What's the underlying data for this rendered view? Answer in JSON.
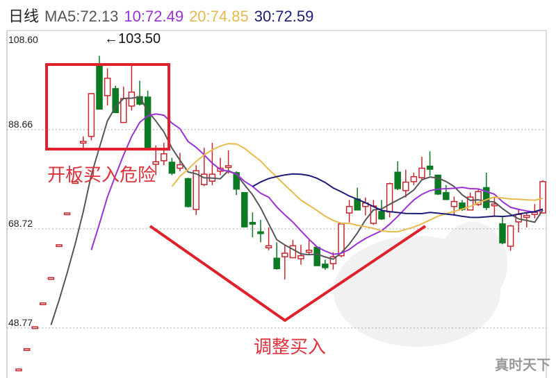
{
  "header": {
    "period": "日线",
    "ma5": "MA5:72.13",
    "ma10": "10:72.49",
    "ma20": "20:74.85",
    "ma30": "30:72.59"
  },
  "annotations": {
    "peak_label": "←103.50",
    "danger_label": "开板买入危险",
    "buy_label": "调整买入"
  },
  "watermark": "真时天下",
  "colors": {
    "up": "#c8262e",
    "down": "#0b7a22",
    "ma5": "#555555",
    "ma10": "#9b30d9",
    "ma20": "#e9b94c",
    "ma30": "#1c1c78",
    "annotation": "#e0202a"
  },
  "chart_data": {
    "type": "candlestick",
    "ylim": [
      38.7,
      108.6
    ],
    "y_ticks": [
      {
        "value": 108.6,
        "label": "108.60"
      },
      {
        "value": 88.66,
        "label": "88.66"
      },
      {
        "value": 68.72,
        "label": "68.72"
      },
      {
        "value": 48.77,
        "label": "48.77"
      }
    ],
    "grid": "horizontal dotted",
    "moving_averages": [
      5,
      10,
      20,
      30
    ],
    "ohlc_columns": [
      "open",
      "close",
      "high",
      "low"
    ],
    "candles": [
      [
        40.5,
        40.5,
        40.5,
        40.5
      ],
      [
        44.6,
        44.6,
        44.6,
        44.6
      ],
      [
        49.0,
        49.0,
        49.0,
        49.0
      ],
      [
        53.8,
        53.8,
        53.8,
        53.8
      ],
      [
        58.9,
        58.9,
        58.9,
        58.9
      ],
      [
        65.5,
        65.5,
        65.5,
        65.5
      ],
      [
        71.9,
        71.9,
        71.9,
        71.9
      ],
      [
        78.2,
        78.2,
        78.2,
        78.2
      ],
      [
        86.1,
        86.3,
        87.3,
        84.5
      ],
      [
        87.3,
        95.9,
        96.0,
        86.5
      ],
      [
        101.8,
        92.8,
        103.5,
        92.8
      ],
      [
        95.5,
        99.0,
        101.0,
        93.5
      ],
      [
        96.9,
        92.1,
        97.5,
        92.0
      ],
      [
        90.1,
        94.9,
        97.3,
        90.0
      ],
      [
        93.4,
        96.2,
        101.5,
        92.5
      ],
      [
        95.3,
        93.8,
        98.5,
        93.5
      ],
      [
        95.2,
        85.0,
        96.5,
        85.0
      ],
      [
        81.7,
        82.2,
        85.5,
        79.5
      ],
      [
        82.4,
        83.8,
        86.0,
        81.5
      ],
      [
        82.1,
        79.9,
        83.0,
        79.5
      ],
      [
        80.9,
        81.6,
        84.0,
        80.3
      ],
      [
        78.8,
        73.2,
        79.0,
        73.0
      ],
      [
        72.6,
        80.4,
        81.5,
        71.5
      ],
      [
        77.6,
        79.7,
        85.0,
        77.3
      ],
      [
        78.3,
        79.7,
        86.0,
        77.5
      ],
      [
        80.3,
        80.9,
        83.0,
        79.5
      ],
      [
        81.1,
        81.4,
        84.5,
        79.8
      ],
      [
        80.0,
        76.7,
        80.3,
        75.5
      ],
      [
        76.0,
        69.1,
        76.0,
        69.0
      ],
      [
        70.0,
        69.7,
        72.0,
        67.0
      ],
      [
        68.1,
        67.8,
        70.5,
        66.0
      ],
      [
        64.9,
        65.3,
        69.0,
        64.4
      ],
      [
        62.8,
        60.7,
        66.0,
        60.5
      ],
      [
        63.1,
        63.8,
        65.5,
        58.5
      ],
      [
        62.9,
        65.3,
        66.5,
        62.8
      ],
      [
        62.7,
        63.3,
        65.5,
        61.5
      ],
      [
        64.0,
        64.4,
        66.4,
        63.4
      ],
      [
        65.0,
        61.3,
        65.2,
        61.2
      ],
      [
        61.6,
        60.9,
        62.5,
        60.5
      ],
      [
        61.7,
        63.1,
        64.0,
        60.5
      ],
      [
        63.3,
        69.7,
        69.8,
        63.0
      ],
      [
        71.9,
        73.2,
        74.5,
        70.0
      ],
      [
        74.7,
        72.5,
        77.0,
        72.4
      ],
      [
        73.2,
        73.9,
        75.0,
        71.4
      ],
      [
        69.8,
        73.3,
        74.5,
        69.5
      ],
      [
        72.2,
        70.7,
        74.5,
        70.5
      ],
      [
        72.1,
        77.8,
        78.0,
        71.0
      ],
      [
        80.1,
        76.8,
        82.3,
        76.5
      ],
      [
        76.4,
        78.1,
        80.6,
        75.0
      ],
      [
        78.2,
        79.2,
        80.0,
        77.5
      ],
      [
        79.0,
        80.9,
        83.2,
        78.6
      ],
      [
        81.3,
        80.7,
        84.3,
        79.4
      ],
      [
        79.5,
        75.7,
        79.6,
        75.5
      ],
      [
        76.0,
        74.6,
        77.5,
        74.5
      ],
      [
        73.2,
        74.2,
        75.2,
        71.3
      ],
      [
        73.9,
        72.6,
        74.5,
        72.3
      ],
      [
        72.5,
        75.1,
        76.0,
        72.4
      ],
      [
        73.6,
        76.2,
        76.8,
        73.3
      ],
      [
        77.0,
        73.0,
        80.0,
        72.5
      ],
      [
        73.4,
        73.7,
        75.0,
        71.2
      ],
      [
        69.7,
        65.9,
        71.2,
        65.6
      ],
      [
        65.2,
        69.3,
        69.5,
        64.3
      ],
      [
        70.1,
        71.6,
        72.8,
        68.0
      ],
      [
        71.0,
        71.4,
        72.0,
        69.0
      ],
      [
        71.6,
        72.0,
        73.7,
        70.8
      ],
      [
        71.9,
        78.2,
        78.5,
        71.8
      ]
    ]
  }
}
